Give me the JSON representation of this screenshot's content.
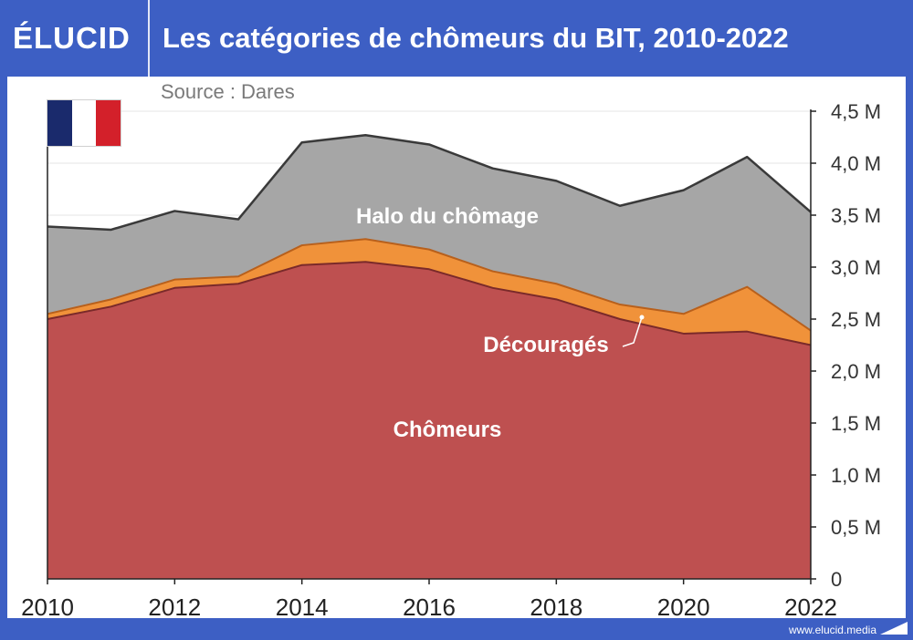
{
  "header": {
    "logo": "ÉLUCID",
    "title": "Les catégories de chômeurs du BIT, 2010-2022"
  },
  "source": "Source : Dares",
  "footer": {
    "site": "www.elucid.media"
  },
  "flag": {
    "colors": [
      "#1a2a6c",
      "#ffffff",
      "#d3202a"
    ]
  },
  "chart_data": {
    "type": "area",
    "stacked": true,
    "x": [
      2010,
      2011,
      2012,
      2013,
      2014,
      2015,
      2016,
      2017,
      2018,
      2019,
      2020,
      2021,
      2022
    ],
    "xticks": [
      2010,
      2012,
      2014,
      2016,
      2018,
      2020,
      2022
    ],
    "ylim": [
      0,
      4.5
    ],
    "yticks": [
      0,
      0.5,
      1.0,
      1.5,
      2.0,
      2.5,
      3.0,
      3.5,
      4.0,
      4.5
    ],
    "ytick_labels": [
      "0",
      "0,5 M",
      "1,0 M",
      "1,5 M",
      "2,0 M",
      "2,5 M",
      "3,0 M",
      "3,5 M",
      "4,0 M",
      "4,5 M"
    ],
    "y_axis_position": "right",
    "grid": true,
    "series": [
      {
        "name": "Chômeurs",
        "color": "#be5050",
        "values": [
          2.5,
          2.62,
          2.8,
          2.84,
          3.02,
          3.05,
          2.98,
          2.8,
          2.69,
          2.5,
          2.36,
          2.38,
          2.25
        ]
      },
      {
        "name": "Découragés",
        "color": "#f0923a",
        "values": [
          0.05,
          0.07,
          0.08,
          0.07,
          0.19,
          0.22,
          0.19,
          0.16,
          0.15,
          0.14,
          0.19,
          0.43,
          0.14
        ]
      },
      {
        "name": "Halo du chômage",
        "color": "#a6a6a6",
        "values": [
          0.84,
          0.67,
          0.66,
          0.55,
          0.99,
          1.0,
          1.01,
          0.99,
          0.99,
          0.95,
          1.19,
          1.25,
          1.14
        ]
      }
    ]
  }
}
